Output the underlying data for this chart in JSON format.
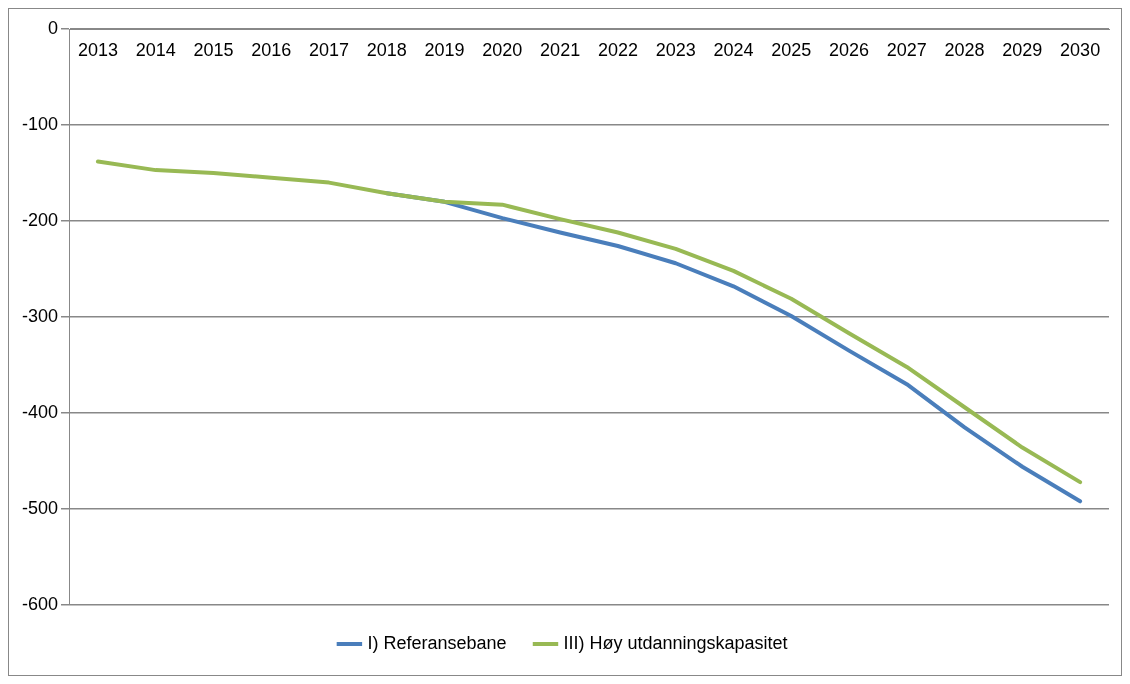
{
  "chart_data": {
    "type": "line",
    "categories": [
      "2013",
      "2014",
      "2015",
      "2016",
      "2017",
      "2018",
      "2019",
      "2020",
      "2021",
      "2022",
      "2023",
      "2024",
      "2025",
      "2026",
      "2027",
      "2028",
      "2029",
      "2030"
    ],
    "series": [
      {
        "name": "I) Referansebane",
        "color": "#4a7ebb",
        "values": [
          null,
          null,
          null,
          null,
          null,
          -171,
          -180,
          -197,
          -212,
          -226,
          -244,
          -268,
          -299,
          -335,
          -370,
          -415,
          -456,
          -492
        ]
      },
      {
        "name": "III) Høy utdanningskapasitet",
        "color": "#98b954",
        "values": [
          -138,
          -147,
          -150,
          -155,
          -160,
          -171,
          -180,
          -183,
          -198,
          -212,
          -229,
          -252,
          -281,
          -317,
          -352,
          -394,
          -436,
          -472
        ]
      }
    ],
    "ylim": [
      -600,
      0
    ],
    "yticks": [
      0,
      -100,
      -200,
      -300,
      -400,
      -500,
      -600
    ],
    "grid": "y",
    "legend": "bottom",
    "marker": "none",
    "line_style": "solid"
  }
}
